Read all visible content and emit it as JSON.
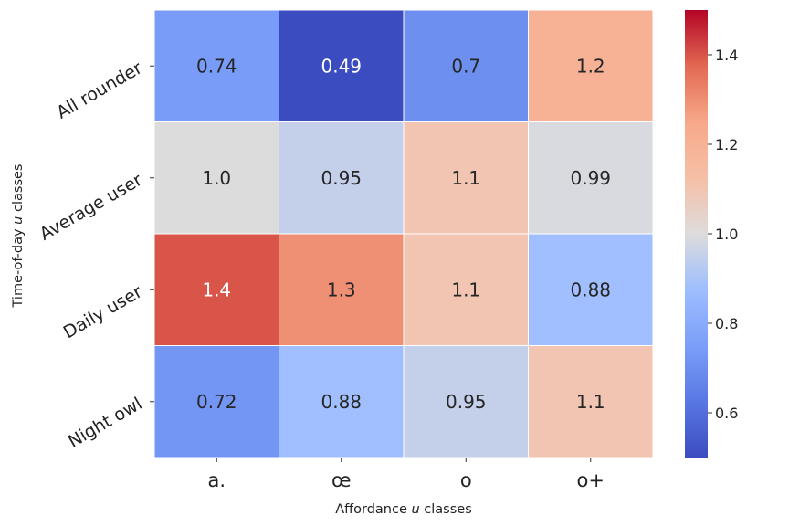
{
  "chart_data": {
    "type": "heatmap",
    "title": "",
    "xlabel_prefix": "Affordance ",
    "xlabel_var": "u",
    "xlabel_suffix": " classes",
    "ylabel_prefix": "Time-of-day ",
    "ylabel_var": "u",
    "ylabel_suffix": " classes",
    "x_categories": [
      "a.",
      "œ",
      "o",
      "o+"
    ],
    "y_categories": [
      "All rounder",
      "Average user",
      "Daily user",
      "Night owl"
    ],
    "values": [
      [
        0.74,
        0.49,
        0.7,
        1.2
      ],
      [
        1.0,
        0.95,
        1.1,
        0.99
      ],
      [
        1.4,
        1.3,
        1.1,
        0.88
      ],
      [
        0.72,
        0.88,
        0.95,
        1.1
      ]
    ],
    "labels": [
      [
        "0.74",
        "0.49",
        "0.7",
        "1.2"
      ],
      [
        "1.0",
        "0.95",
        "1.1",
        "0.99"
      ],
      [
        "1.4",
        "1.3",
        "1.1",
        "0.88"
      ],
      [
        "0.72",
        "0.88",
        "0.95",
        "1.1"
      ]
    ],
    "colorbar": {
      "colormap": "coolwarm",
      "vmin": 0.5,
      "vmax": 1.5,
      "ticks": [
        0.6,
        0.8,
        1.0,
        1.2,
        1.4
      ],
      "tick_labels": [
        "0.6",
        "0.8",
        "1.0",
        "1.2",
        "1.4"
      ]
    }
  }
}
